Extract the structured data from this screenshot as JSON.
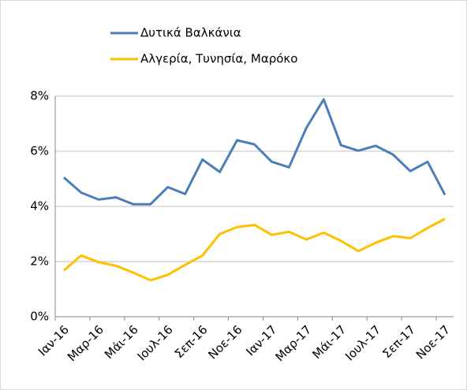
{
  "chart_data": {
    "type": "line",
    "categories": [
      "Ιαν-16",
      null,
      "Μαρ-16",
      null,
      "Μάι-16",
      null,
      "Ιουλ-16",
      null,
      "Σεπ-16",
      null,
      "Νοε-16",
      null,
      "Ιαν-17",
      null,
      "Μαρ-17",
      null,
      "Μάι-17",
      null,
      "Ιουλ-17",
      null,
      "Σεπ-17",
      null,
      "Νοε-17"
    ],
    "series": [
      {
        "name": "Δυτικά Βαλκάνια",
        "color": "#4a7ebb",
        "values": [
          5.05,
          4.5,
          4.25,
          4.33,
          4.08,
          4.08,
          4.7,
          4.45,
          5.7,
          5.25,
          6.4,
          6.25,
          5.62,
          5.42,
          6.85,
          7.88,
          6.22,
          6.02,
          6.2,
          5.88,
          5.28,
          5.62,
          4.42
        ]
      },
      {
        "name": "Αλγερία, Τυνησία, Μαρόκο",
        "color": "#ffc000",
        "values": [
          1.68,
          2.22,
          1.98,
          1.85,
          1.6,
          1.32,
          1.52,
          1.88,
          2.22,
          3.0,
          3.25,
          3.33,
          2.97,
          3.08,
          2.8,
          3.05,
          2.75,
          2.38,
          2.68,
          2.92,
          2.85,
          3.22,
          3.55
        ]
      }
    ],
    "ylim": [
      0,
      8
    ],
    "yticks": [
      {
        "value": 0,
        "label": "0%"
      },
      {
        "value": 2,
        "label": "2%"
      },
      {
        "value": 4,
        "label": "4%"
      },
      {
        "value": 6,
        "label": "6%"
      },
      {
        "value": 8,
        "label": "8%"
      }
    ],
    "grid": true,
    "legend": "top"
  }
}
